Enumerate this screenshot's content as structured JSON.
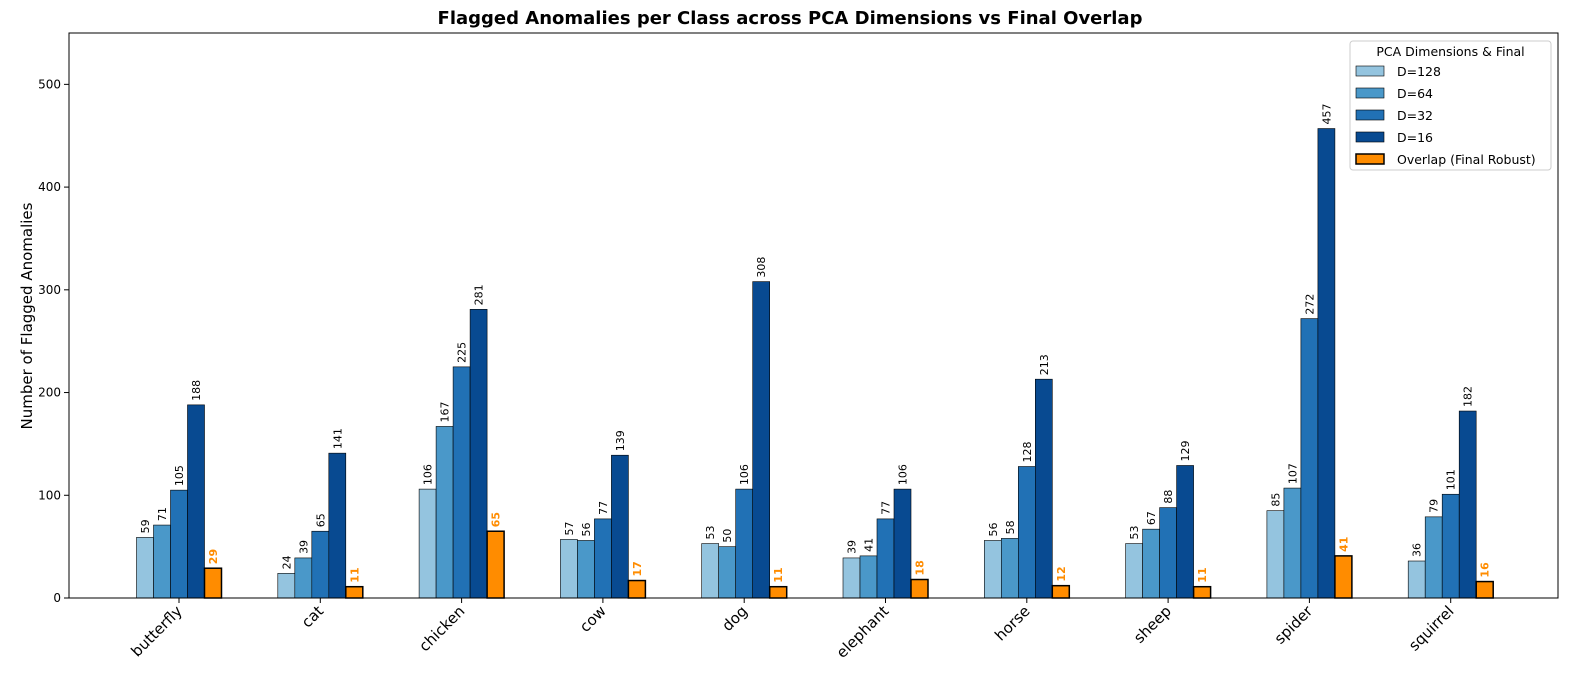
{
  "chart_data": {
    "type": "bar",
    "title": "Flagged Anomalies per Class across PCA Dimensions vs Final Overlap",
    "xlabel": "",
    "ylabel": "Number of Flagged Anomalies",
    "ylim": [
      0,
      550
    ],
    "yticks": [
      0,
      100,
      200,
      300,
      400,
      500
    ],
    "grid": false,
    "legend_title": "PCA Dimensions & Final",
    "legend_position": "top-right",
    "categories": [
      "butterfly",
      "cat",
      "chicken",
      "cow",
      "dog",
      "elephant",
      "horse",
      "sheep",
      "spider",
      "squirrel"
    ],
    "series": [
      {
        "name": "D=128",
        "color": "#94c4df",
        "values": [
          59,
          24,
          106,
          57,
          53,
          39,
          56,
          53,
          85,
          36
        ]
      },
      {
        "name": "D=64",
        "color": "#4a98c9",
        "values": [
          71,
          39,
          167,
          56,
          50,
          41,
          58,
          67,
          107,
          79
        ]
      },
      {
        "name": "D=32",
        "color": "#2171b5",
        "values": [
          105,
          65,
          225,
          77,
          106,
          77,
          128,
          88,
          272,
          101
        ]
      },
      {
        "name": "D=16",
        "color": "#084a91",
        "values": [
          188,
          141,
          281,
          139,
          308,
          106,
          213,
          129,
          457,
          182
        ]
      },
      {
        "name": "Overlap (Final Robust)",
        "color": "#ff8c00",
        "values": [
          29,
          11,
          65,
          17,
          11,
          18,
          12,
          11,
          41,
          16
        ]
      }
    ]
  }
}
